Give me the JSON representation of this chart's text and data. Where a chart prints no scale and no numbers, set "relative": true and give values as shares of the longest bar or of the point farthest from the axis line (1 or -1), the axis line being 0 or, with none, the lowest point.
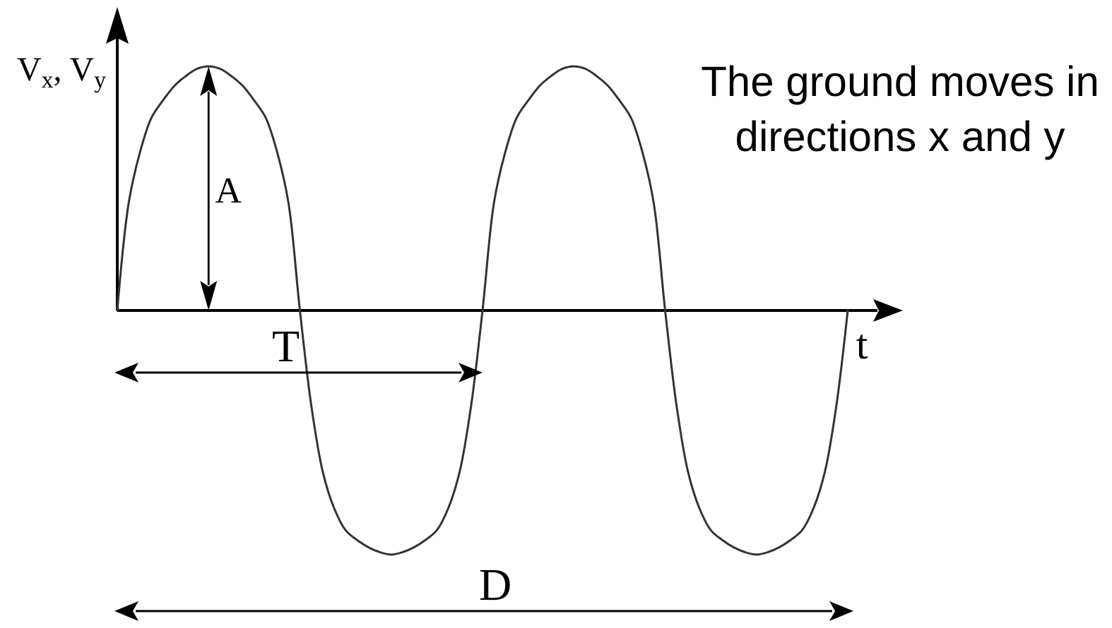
{
  "chart_data": {
    "type": "line",
    "xlabel": "t",
    "ylabel": "V$_{x}$, V$_{y}$",
    "annotations": [
      "A",
      "T",
      "D",
      "The ground moves in directions x and y"
    ],
    "categories": [
      null,
      null,
      null,
      null,
      null,
      null,
      null,
      null,
      null,
      null,
      null,
      null,
      null,
      null,
      null,
      null,
      null,
      null,
      null,
      null,
      null,
      null,
      null,
      null,
      null,
      null,
      null,
      null,
      null,
      null,
      null,
      null,
      null,
      null,
      null,
      null,
      null,
      null,
      null,
      null,
      null,
      null,
      null,
      null,
      null,
      null,
      null,
      null,
      null,
      null,
      null,
      null,
      null,
      null,
      null,
      null,
      null,
      null,
      null,
      null,
      null,
      null,
      null,
      null,
      null
    ],
    "values": [
      0,
      0.44,
      0.65,
      0.79,
      0.86,
      0.92,
      0.96,
      0.99,
      1,
      0.99,
      0.96,
      0.92,
      0.86,
      0.79,
      0.65,
      0.44,
      0,
      -0.39,
      -0.66,
      -0.81,
      -0.9,
      -0.94,
      -0.97,
      -0.99,
      -1,
      -0.99,
      -0.97,
      -0.94,
      -0.9,
      -0.81,
      -0.66,
      -0.39,
      0,
      0.44,
      0.65,
      0.79,
      0.86,
      0.92,
      0.96,
      0.99,
      1,
      0.99,
      0.96,
      0.92,
      0.86,
      0.79,
      0.65,
      0.44,
      0,
      -0.39,
      -0.66,
      -0.81,
      -0.9,
      -0.94,
      -0.97,
      -0.99,
      -1,
      -0.99,
      -0.97,
      -0.94,
      -0.9,
      -0.81,
      -0.66,
      -0.39,
      0
    ],
    "color": "#333333",
    "relative": true
  }
}
